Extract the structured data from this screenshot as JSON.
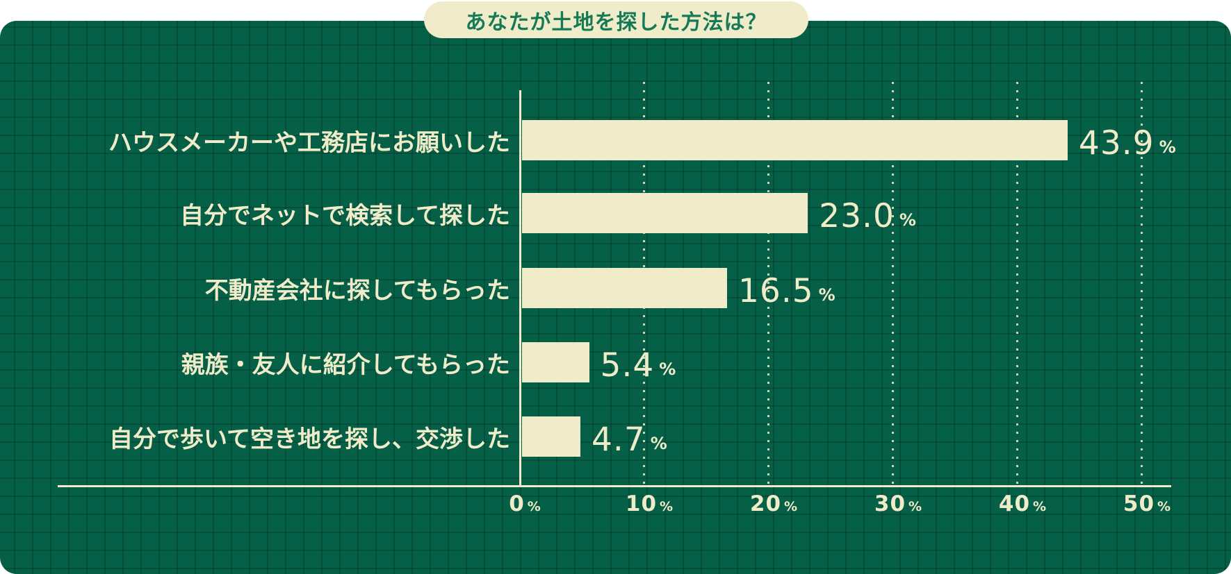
{
  "title": "あなたが土地を探した方法は？",
  "unit_suffix": "%",
  "colors": {
    "background_green": "#066047",
    "grid_line_green": "#04503b",
    "cream": "#f0ecca",
    "title_text_green": "#177a56"
  },
  "chart_data": {
    "type": "bar",
    "orientation": "horizontal",
    "title": "あなたが土地を探した方法は？",
    "categories": [
      "ハウスメーカーや工務店にお願いした",
      "自分でネットで検索して探した",
      "不動産会社に探してもらった",
      "親族・友人に紹介してもらった",
      "自分で歩いて空き地を探し、交渉した"
    ],
    "values": [
      43.9,
      23.0,
      16.5,
      5.4,
      4.7
    ],
    "value_labels": [
      "43.9",
      "23.0",
      "16.5",
      "5.4",
      "4.7"
    ],
    "unit": "%",
    "xlabel": "",
    "ylabel": "",
    "xlim": [
      0,
      50
    ],
    "x_ticks": [
      0,
      10,
      20,
      30,
      40,
      50
    ],
    "x_tick_labels": [
      "0",
      "10",
      "20",
      "30",
      "40",
      "50"
    ],
    "grid": "dotted vertical gridlines at 10% intervals",
    "legend_position": "none"
  }
}
